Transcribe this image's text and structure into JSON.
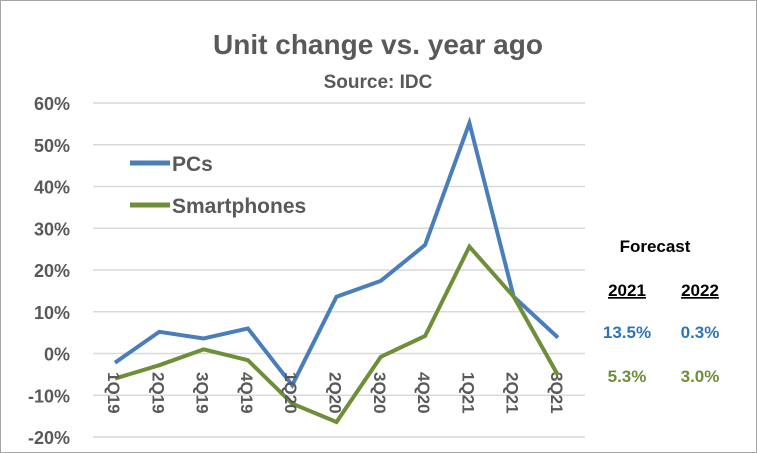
{
  "chart_data": {
    "type": "line",
    "title": "Unit change vs. year ago",
    "subtitle": "Source: IDC",
    "xlabel": "",
    "ylabel": "",
    "ylim": [
      -20,
      60
    ],
    "y_ticks": [
      "60%",
      "50%",
      "40%",
      "30%",
      "20%",
      "10%",
      "0%",
      "-10%",
      "-20%"
    ],
    "grid": true,
    "legend_placement": "top-left",
    "categories": [
      "1Q19",
      "2Q19",
      "3Q19",
      "4Q19",
      "1Q20",
      "2Q20",
      "3Q20",
      "4Q20",
      "1Q21",
      "2Q21",
      "3Q21"
    ],
    "series": [
      {
        "name": "PCs",
        "color": "#4a7ebb",
        "values": [
          -2.2,
          5.2,
          3.6,
          6.0,
          -7.6,
          13.6,
          17.4,
          26.0,
          55.2,
          13.6,
          3.8
        ]
      },
      {
        "name": "Smartphones",
        "color": "#6e8f3a",
        "values": [
          -6.0,
          -2.8,
          1.0,
          -1.6,
          -12.0,
          -16.4,
          -0.8,
          4.2,
          25.6,
          13.6,
          -5.2
        ]
      }
    ],
    "forecast": {
      "title": "Forecast",
      "years": [
        "2021",
        "2022"
      ],
      "rows": [
        {
          "series": "PCs",
          "color": "#2e75b6",
          "values": [
            "13.5%",
            "0.3%"
          ]
        },
        {
          "series": "Smartphones",
          "color": "#6e8f3a",
          "values": [
            "5.3%",
            "3.0%"
          ]
        }
      ]
    }
  }
}
